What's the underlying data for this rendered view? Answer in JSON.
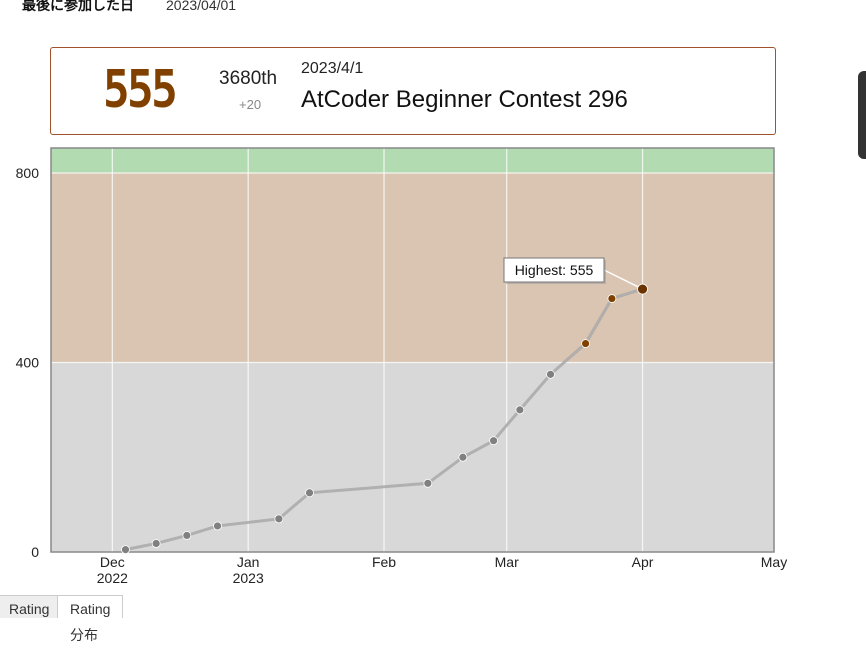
{
  "last_participation": {
    "label": "最後に参加した日",
    "value": "2023/04/01"
  },
  "latest": {
    "rating": "555",
    "rank": "3680th",
    "diff": "+20",
    "date": "2023/4/1",
    "contest": "AtCoder Beginner Contest 296"
  },
  "tabs": [
    "Rating",
    "Rating分布"
  ],
  "colors": {
    "brown": "#804000",
    "brown_band": "#d9c5b2",
    "gray_band": "#d8d8d8",
    "green_band": "#b3dbb2",
    "line": "#aaaaaa",
    "gray_point": "#808080"
  },
  "chart_data": {
    "type": "line",
    "ylim": [
      0,
      800
    ],
    "yticks": [
      0,
      400,
      800
    ],
    "xticks": [
      {
        "label": "Dec",
        "sub": "2022",
        "date": "2022-12-01"
      },
      {
        "label": "Jan",
        "sub": "2023",
        "date": "2023-01-01"
      },
      {
        "label": "Feb",
        "sub": "",
        "date": "2023-02-01"
      },
      {
        "label": "Mar",
        "sub": "",
        "date": "2023-03-01"
      },
      {
        "label": "Apr",
        "sub": "",
        "date": "2023-04-01"
      },
      {
        "label": "May",
        "sub": "",
        "date": "2023-05-01"
      }
    ],
    "xrange": [
      "2022-11-17",
      "2023-05-01"
    ],
    "bands": [
      {
        "from": 0,
        "to": 400,
        "color": "#d8d8d8"
      },
      {
        "from": 400,
        "to": 800,
        "color": "#d9c5b2"
      },
      {
        "from": 800,
        "to": 1200,
        "color": "#b3dbb2"
      }
    ],
    "points": [
      {
        "date": "2022-12-04",
        "value": 5
      },
      {
        "date": "2022-12-11",
        "value": 18
      },
      {
        "date": "2022-12-18",
        "value": 35
      },
      {
        "date": "2022-12-25",
        "value": 55
      },
      {
        "date": "2023-01-08",
        "value": 70
      },
      {
        "date": "2023-01-15",
        "value": 125
      },
      {
        "date": "2023-02-11",
        "value": 145
      },
      {
        "date": "2023-02-19",
        "value": 200
      },
      {
        "date": "2023-02-26",
        "value": 235
      },
      {
        "date": "2023-03-04",
        "value": 300
      },
      {
        "date": "2023-03-11",
        "value": 375
      },
      {
        "date": "2023-03-19",
        "value": 440
      },
      {
        "date": "2023-03-25",
        "value": 535
      },
      {
        "date": "2023-04-01",
        "value": 555
      }
    ],
    "annotation": {
      "text": "Highest: 555",
      "date": "2023-04-01",
      "value": 555
    }
  }
}
